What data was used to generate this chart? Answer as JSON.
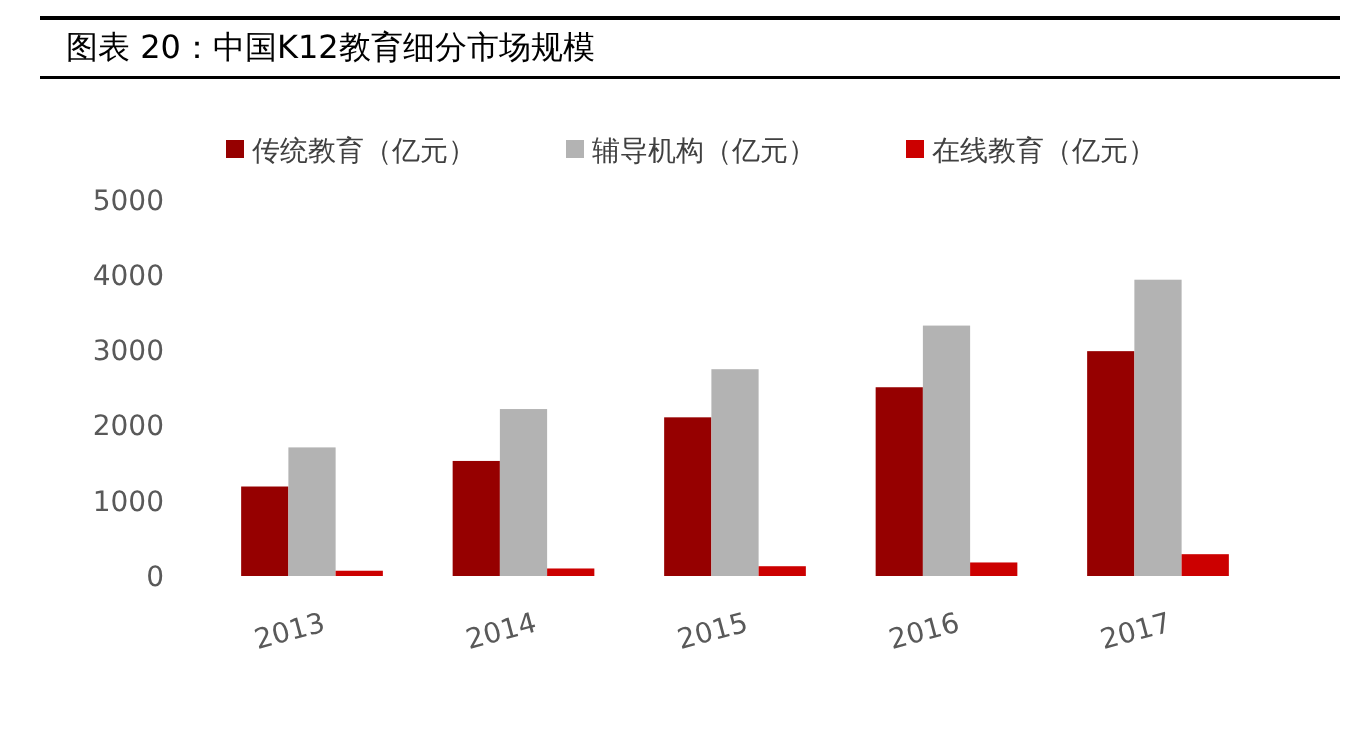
{
  "chart_data": {
    "type": "bar",
    "title": "图表 20：中国K12教育细分市场规模",
    "categories": [
      "2013",
      "2014",
      "2015",
      "2016",
      "2017"
    ],
    "series": [
      {
        "name": "传统教育（亿元）",
        "color": "#960000",
        "values": [
          1190,
          1530,
          2110,
          2510,
          2990
        ]
      },
      {
        "name": "辅导机构（亿元）",
        "color": "#b3b3b3",
        "values": [
          1710,
          2220,
          2750,
          3330,
          3940
        ]
      },
      {
        "name": "在线教育（亿元）",
        "color": "#cc0000",
        "values": [
          70,
          100,
          130,
          180,
          290
        ]
      }
    ],
    "ylim": [
      0,
      5000
    ],
    "yticks": [
      0,
      1000,
      2000,
      3000,
      4000,
      5000
    ],
    "grid": false,
    "legend": "top"
  }
}
